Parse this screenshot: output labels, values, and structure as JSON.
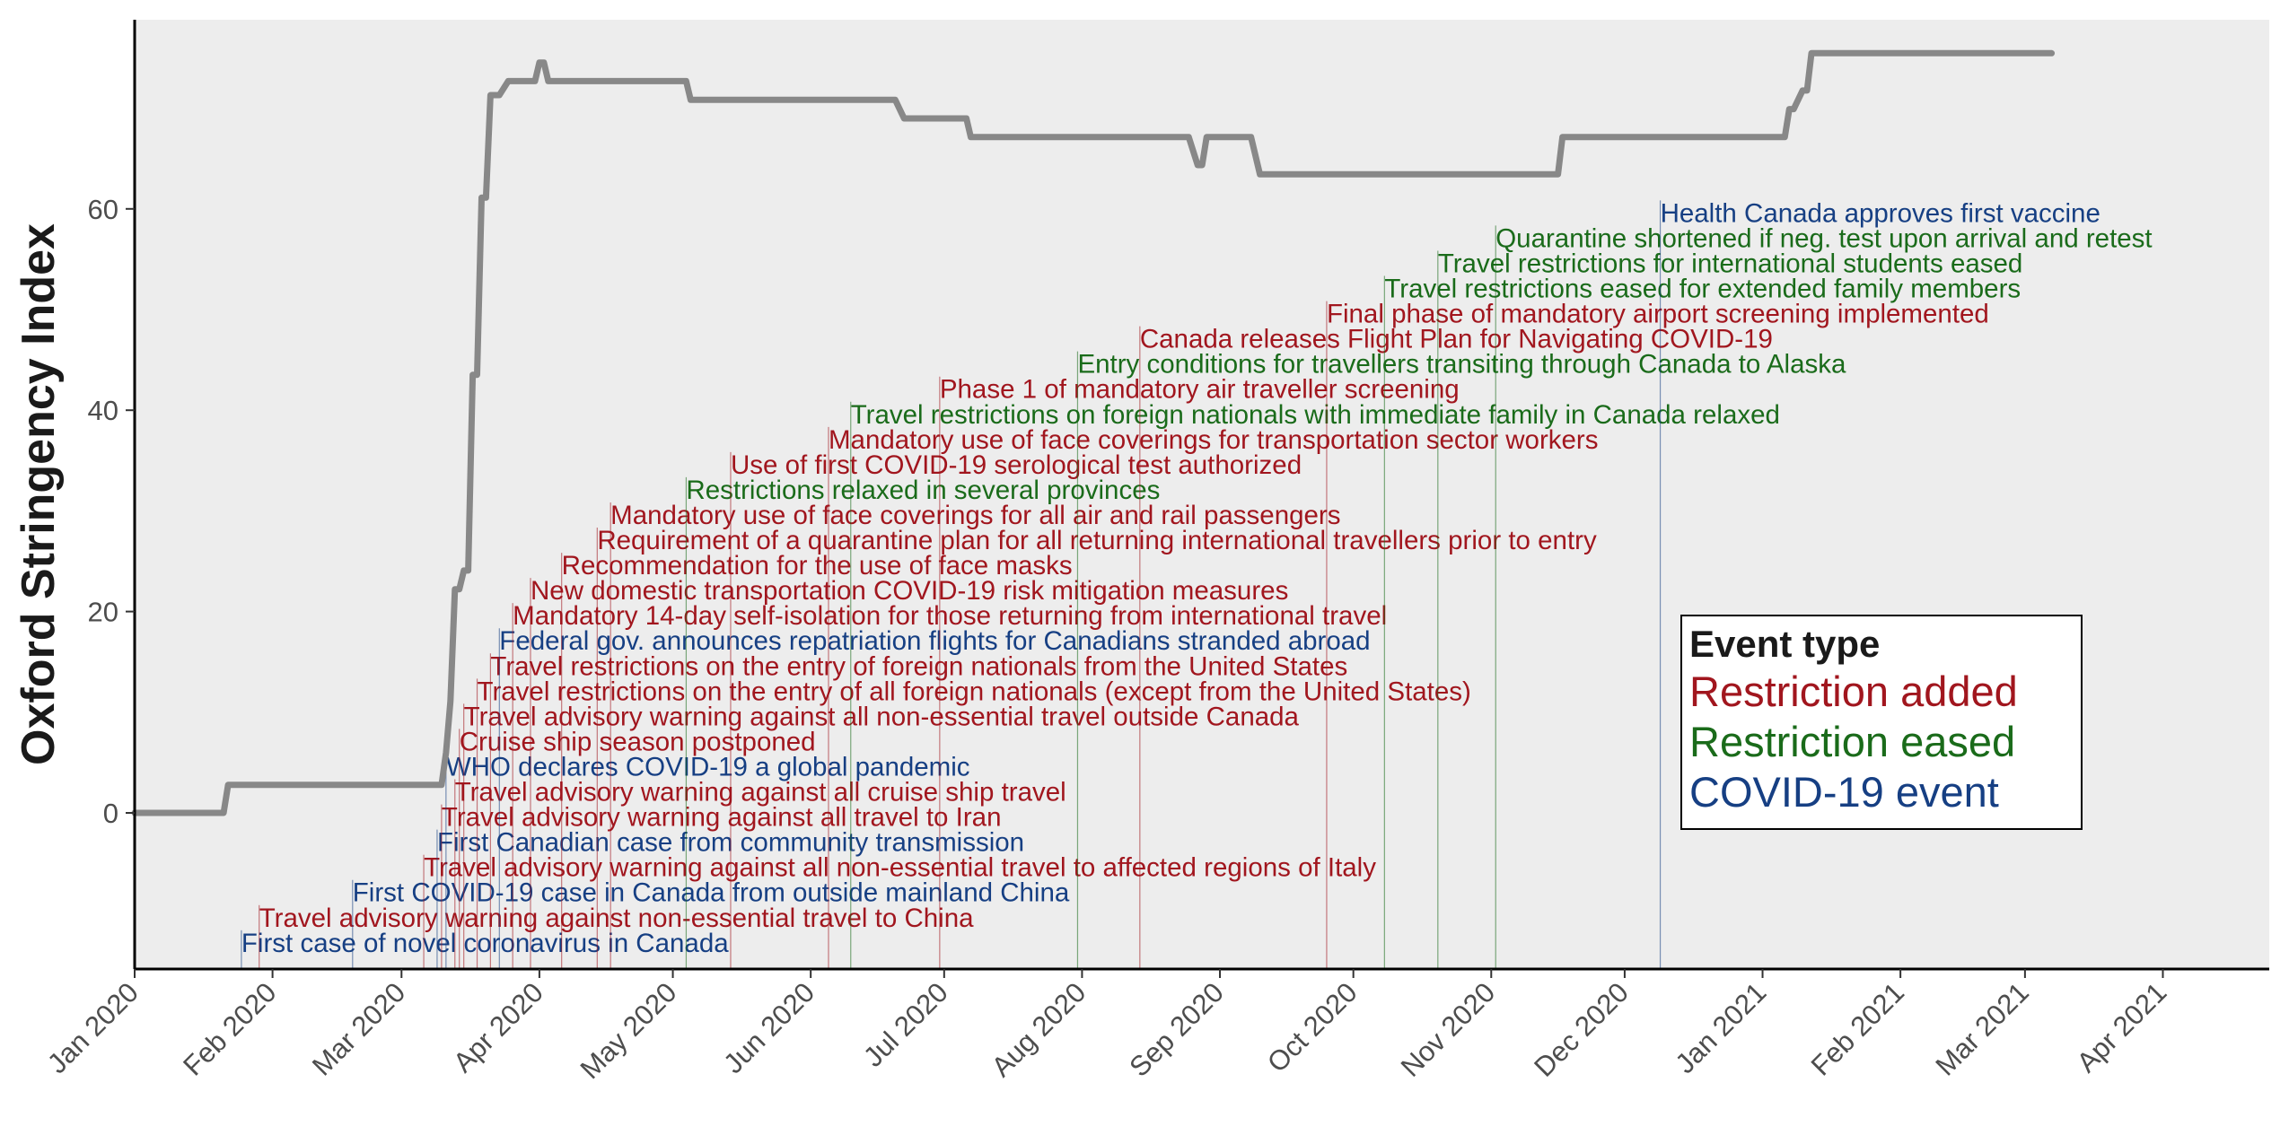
{
  "chart_data": {
    "type": "line",
    "ylabel": "Oxford Stringency Index",
    "xlabel": "",
    "y_ticks": [
      "0",
      "20",
      "40",
      "60"
    ],
    "x_ticks": [
      "Jan 2020",
      "Feb 2020",
      "Mar 2020",
      "Apr 2020",
      "May 2020",
      "Jun 2020",
      "Jul 2020",
      "Aug 2020",
      "Sep 2020",
      "Oct 2020",
      "Nov 2020",
      "Dec 2020",
      "Jan 2021",
      "Feb 2021",
      "Mar 2021",
      "Apr 2021"
    ],
    "x_range": [
      "2020-01-01",
      "2021-04-26"
    ],
    "y_range": [
      -16,
      78
    ],
    "grid": false,
    "line_color": "#888888",
    "series": [
      {
        "points": [
          [
            "2020-01-01",
            0
          ],
          [
            "2020-01-21",
            0
          ],
          [
            "2020-01-22",
            2.78
          ],
          [
            "2020-03-10",
            2.78
          ],
          [
            "2020-03-11",
            6
          ],
          [
            "2020-03-12",
            11.11
          ],
          [
            "2020-03-13",
            22.22
          ],
          [
            "2020-03-14",
            22.22
          ],
          [
            "2020-03-15",
            24.07
          ],
          [
            "2020-03-16",
            24.07
          ],
          [
            "2020-03-17",
            43.52
          ],
          [
            "2020-03-18",
            43.52
          ],
          [
            "2020-03-19",
            61.11
          ],
          [
            "2020-03-20",
            61.11
          ],
          [
            "2020-03-21",
            71.3
          ],
          [
            "2020-03-23",
            71.3
          ],
          [
            "2020-03-25",
            72.69
          ],
          [
            "2020-03-31",
            72.69
          ],
          [
            "2020-04-01",
            74.54
          ],
          [
            "2020-04-02",
            74.54
          ],
          [
            "2020-04-03",
            72.69
          ],
          [
            "2020-05-04",
            72.69
          ],
          [
            "2020-05-05",
            70.83
          ],
          [
            "2020-06-20",
            70.83
          ],
          [
            "2020-06-22",
            68.98
          ],
          [
            "2020-07-06",
            68.98
          ],
          [
            "2020-07-07",
            67.13
          ],
          [
            "2020-08-25",
            67.13
          ],
          [
            "2020-08-27",
            64.35
          ],
          [
            "2020-08-28",
            64.35
          ],
          [
            "2020-08-29",
            67.13
          ],
          [
            "2020-09-08",
            67.13
          ],
          [
            "2020-09-10",
            63.43
          ],
          [
            "2020-11-16",
            63.43
          ],
          [
            "2020-11-17",
            67.13
          ],
          [
            "2020-12-31",
            67.13
          ],
          [
            "2021-01-06",
            67.13
          ],
          [
            "2021-01-07",
            69.91
          ],
          [
            "2021-01-08",
            69.91
          ],
          [
            "2021-01-10",
            71.76
          ],
          [
            "2021-01-11",
            71.76
          ],
          [
            "2021-01-12",
            75.46
          ],
          [
            "2021-03-07",
            75.46
          ]
        ]
      }
    ],
    "legend": {
      "title": "Event type",
      "position": "right",
      "items": [
        {
          "label": "Restriction added",
          "color": "#a1161e"
        },
        {
          "label": "Restriction eased",
          "color": "#1a6b1a"
        },
        {
          "label": "COVID-19 event",
          "color": "#163f83"
        }
      ]
    },
    "events": [
      {
        "date": "2020-01-25",
        "label": "First case of novel coronavirus in Canada",
        "type": "covid",
        "y": -13.8
      },
      {
        "date": "2020-01-29",
        "label": "Travel advisory warning against non-essential travel to China",
        "type": "added",
        "y": -11.3
      },
      {
        "date": "2020-02-19",
        "label": "First COVID-19 case in Canada from outside mainland China",
        "type": "covid",
        "y": -8.8
      },
      {
        "date": "2020-03-06",
        "label": "Travel advisory warning against all non-essential travel to affected regions of Italy",
        "type": "added",
        "y": -6.3
      },
      {
        "date": "2020-03-09",
        "label": "First Canadian case from community transmission",
        "type": "covid",
        "y": -3.8
      },
      {
        "date": "2020-03-10",
        "label": "Travel advisory warning against all travel to Iran",
        "type": "added",
        "y": -1.3
      },
      {
        "date": "2020-03-13",
        "label": "Travel advisory warning against all cruise ship travel",
        "type": "added",
        "y": 1.2
      },
      {
        "date": "2020-03-11",
        "label": "WHO declares COVID-19 a global pandemic",
        "type": "covid",
        "y": 3.7
      },
      {
        "date": "2020-03-14",
        "label": "Cruise ship season postponed",
        "type": "added",
        "y": 6.2
      },
      {
        "date": "2020-03-15",
        "label": "Travel advisory warning against all non-essential travel outside Canada",
        "type": "added",
        "y": 8.7
      },
      {
        "date": "2020-03-18",
        "label": "Travel restrictions on the entry of all foreign nationals (except from the United States)",
        "type": "added",
        "y": 11.2
      },
      {
        "date": "2020-03-21",
        "label": "Travel restrictions on the entry of foreign nationals from the United States",
        "type": "added",
        "y": 13.7
      },
      {
        "date": "2020-03-23",
        "label": "Federal gov. announces repatriation flights for Canadians stranded abroad",
        "type": "covid",
        "y": 16.2
      },
      {
        "date": "2020-03-26",
        "label": "Mandatory 14-day self-isolation for those returning from international travel",
        "type": "added",
        "y": 18.7
      },
      {
        "date": "2020-03-30",
        "label": "New domestic transportation COVID-19 risk mitigation measures",
        "type": "added",
        "y": 21.2
      },
      {
        "date": "2020-04-06",
        "label": "Recommendation for the use of face masks",
        "type": "added",
        "y": 23.7
      },
      {
        "date": "2020-04-14",
        "label": "Requirement of a quarantine plan for all returning international travellers prior to entry",
        "type": "added",
        "y": 26.2
      },
      {
        "date": "2020-04-17",
        "label": "Mandatory use of face coverings for all air and rail passengers",
        "type": "added",
        "y": 28.7
      },
      {
        "date": "2020-05-04",
        "label": "Restrictions relaxed in several provinces",
        "type": "eased",
        "y": 31.2
      },
      {
        "date": "2020-05-14",
        "label": "Use of first COVID-19 serological test authorized",
        "type": "added",
        "y": 33.7
      },
      {
        "date": "2020-06-05",
        "label": "Mandatory use of face coverings for transportation sector workers",
        "type": "added",
        "y": 36.2
      },
      {
        "date": "2020-06-10",
        "label": "Travel restrictions on foreign nationals with immediate family in Canada relaxed",
        "type": "eased",
        "y": 38.7
      },
      {
        "date": "2020-06-30",
        "label": "Phase 1 of mandatory air traveller screening",
        "type": "added",
        "y": 41.2
      },
      {
        "date": "2020-07-31",
        "label": "Entry conditions for travellers transiting through Canada to Alaska",
        "type": "eased",
        "y": 43.7
      },
      {
        "date": "2020-08-14",
        "label": "Canada releases Flight Plan for Navigating COVID-19",
        "type": "added",
        "y": 46.2
      },
      {
        "date": "2020-09-25",
        "label": "Final phase of mandatory airport screening implemented",
        "type": "added",
        "y": 48.7
      },
      {
        "date": "2020-10-08",
        "label": "Travel restrictions eased for extended family members",
        "type": "eased",
        "y": 51.2
      },
      {
        "date": "2020-10-20",
        "label": "Travel restrictions for international students eased",
        "type": "eased",
        "y": 53.7
      },
      {
        "date": "2020-11-02",
        "label": "Quarantine shortened if neg. test upon arrival and retest",
        "type": "eased",
        "y": 56.2
      },
      {
        "date": "2020-12-09",
        "label": "Health Canada approves first vaccine",
        "type": "covid",
        "y": 58.7
      }
    ],
    "type_colors": {
      "added": "#a1161e",
      "eased": "#1a6b1a",
      "covid": "#163f83"
    },
    "panel_background": "#ededed"
  }
}
